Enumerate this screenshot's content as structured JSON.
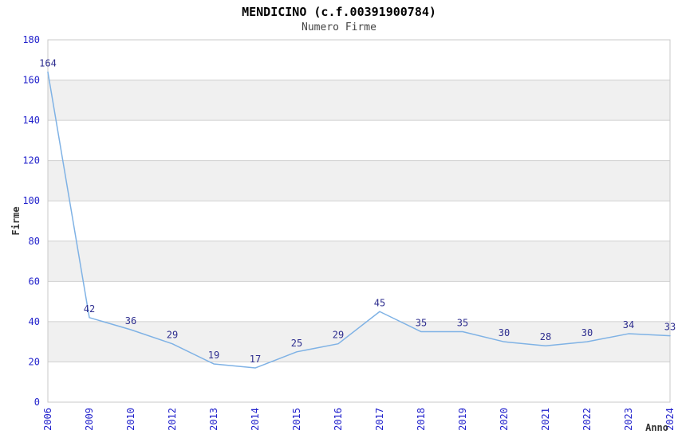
{
  "header": {
    "title": "MENDICINO (c.f.00391900784)",
    "subtitle": "Numero Firme"
  },
  "chart_data": {
    "type": "line",
    "title": "MENDICINO (c.f.00391900784)",
    "subtitle": "Numero Firme",
    "xlabel": "Anno",
    "ylabel": "Firme",
    "categories": [
      "2006",
      "2009",
      "2010",
      "2012",
      "2013",
      "2014",
      "2015",
      "2016",
      "2017",
      "2018",
      "2019",
      "2020",
      "2021",
      "2022",
      "2023",
      "2024"
    ],
    "values": [
      164,
      42,
      36,
      29,
      19,
      17,
      25,
      29,
      45,
      35,
      35,
      30,
      28,
      30,
      34,
      33
    ],
    "ylim": [
      0,
      180
    ],
    "ytick_step": 20,
    "yticks": [
      0,
      20,
      40,
      60,
      80,
      100,
      120,
      140,
      160,
      180
    ],
    "grid": true,
    "legend_position": "none",
    "colors": {
      "line": "#7fb2e5",
      "tick_label": "#2222cc",
      "value_label": "#2e2e8f",
      "axis_title": "#333333",
      "band_alt": "#f0f0f0",
      "band_main": "#ffffff",
      "gridline": "#d0d0d0",
      "plot_border": "#c8c8c8"
    }
  }
}
